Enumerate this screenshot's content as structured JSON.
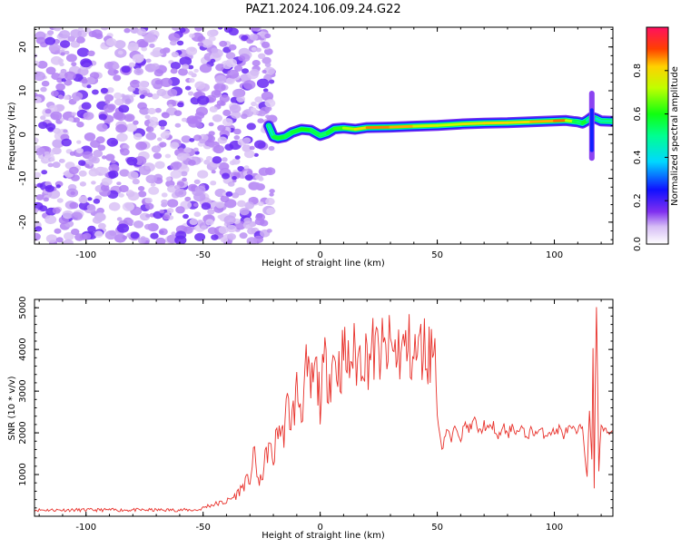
{
  "figure_title": "PAZ1.2024.106.09.24.G22",
  "chart_data": [
    {
      "type": "heatmap",
      "xlabel": "Height of straight line (km)",
      "ylabel": "Frequency (Hz)",
      "xlim": [
        -122,
        125
      ],
      "ylim": [
        -25,
        24.5
      ],
      "x_ticks": [
        -100,
        -50,
        0,
        50,
        100
      ],
      "x_tick_labels": [
        "-100",
        "-50",
        "0",
        "50",
        "100"
      ],
      "y_ticks": [
        -20,
        -10,
        0,
        10,
        20
      ],
      "y_tick_labels": [
        "-20",
        "-10",
        "0",
        "10",
        "20"
      ],
      "noise_region_x": [
        -122,
        -23
      ],
      "ridge": {
        "x": [
          -22,
          -20,
          -18,
          -15,
          -12,
          -8,
          -4,
          0,
          3,
          6,
          10,
          15,
          20,
          30,
          40,
          50,
          60,
          70,
          80,
          90,
          100,
          105,
          108,
          110,
          112,
          114,
          116,
          118,
          120,
          125
        ],
        "freq": [
          2.0,
          -0.5,
          -0.8,
          -0.5,
          0.5,
          1.2,
          1.0,
          -0.2,
          0.3,
          1.3,
          1.5,
          1.2,
          1.6,
          1.7,
          1.9,
          2.1,
          2.4,
          2.6,
          2.7,
          2.9,
          3.1,
          3.2,
          3.0,
          2.9,
          2.6,
          3.2,
          4.0,
          3.6,
          3.1,
          3.0
        ],
        "amplitude": [
          0.35,
          0.55,
          0.6,
          0.55,
          0.55,
          0.6,
          0.6,
          0.5,
          0.55,
          0.6,
          0.65,
          0.75,
          0.85,
          0.88,
          0.8,
          0.7,
          0.75,
          0.8,
          0.82,
          0.78,
          0.9,
          0.85,
          0.6,
          0.5,
          0.55,
          0.6,
          0.3,
          0.4,
          0.45,
          0.5
        ]
      },
      "colorbar": {
        "label": "Normalized spectral amplitude",
        "ticks": [
          0.0,
          0.2,
          0.4,
          0.6,
          0.8
        ],
        "tick_labels": [
          "0.0",
          "0.2",
          "0.4",
          "0.6",
          "0.8"
        ],
        "range": [
          0,
          1
        ]
      }
    },
    {
      "type": "line",
      "xlabel": "Height of straight line (km)",
      "ylabel": "SNR (10 * v/v)",
      "xlim": [
        -122,
        125
      ],
      "ylim": [
        0,
        5200
      ],
      "x_ticks": [
        -100,
        -50,
        0,
        50,
        100
      ],
      "x_tick_labels": [
        "-100",
        "-50",
        "0",
        "50",
        "100"
      ],
      "y_ticks": [
        1000,
        2000,
        3000,
        4000,
        5000
      ],
      "y_tick_labels": [
        "1000",
        "2000",
        "3000",
        "4000",
        "5000"
      ],
      "color": "#e8302a",
      "series": [
        {
          "x": [
            -122,
            -110,
            -100,
            -90,
            -80,
            -70,
            -60,
            -52,
            -48,
            -44,
            -40,
            -36,
            -32,
            -30,
            -28,
            -26,
            -24,
            -22,
            -20,
            -18,
            -16,
            -14,
            -12,
            -10,
            -8,
            -6,
            -4,
            -2,
            0,
            2,
            4,
            6,
            8,
            10,
            12,
            14,
            16,
            18,
            20,
            22,
            24,
            26,
            28,
            30,
            32,
            34,
            36,
            38,
            40,
            42,
            44,
            46,
            48,
            49.5,
            50,
            51,
            52,
            54,
            56,
            58,
            60,
            62,
            64,
            66,
            68,
            70,
            72,
            74,
            76,
            78,
            80,
            82,
            84,
            86,
            88,
            90,
            92,
            94,
            96,
            98,
            100,
            102,
            104,
            106,
            108,
            110,
            111,
            112,
            113,
            114,
            115,
            116,
            116.5,
            117,
            117.5,
            118,
            119,
            120,
            122,
            125
          ],
          "y": [
            150,
            150,
            150,
            150,
            150,
            150,
            150,
            150,
            250,
            300,
            350,
            500,
            800,
            900,
            1500,
            700,
            1200,
            1700,
            1300,
            2200,
            1900,
            2600,
            2300,
            3000,
            2600,
            3400,
            3000,
            3500,
            2800,
            3600,
            3400,
            3800,
            3500,
            3900,
            3600,
            3900,
            3700,
            4000,
            3800,
            4000,
            3900,
            3950,
            3850,
            4050,
            3900,
            4000,
            3950,
            4050,
            3800,
            3950,
            4050,
            3900,
            4000,
            4000,
            2300,
            2100,
            1600,
            2100,
            1800,
            2200,
            1900,
            2200,
            2100,
            2300,
            2000,
            2200,
            2050,
            2200,
            1800,
            2200,
            1900,
            2200,
            2000,
            2100,
            1900,
            2050,
            2000,
            2050,
            1950,
            2050,
            2000,
            2100,
            1950,
            2100,
            2050,
            2000,
            2100,
            2200,
            1500,
            1000,
            2500,
            1300,
            4000,
            700,
            3500,
            5100,
            1100,
            2200,
            2000,
            2050
          ]
        }
      ]
    }
  ]
}
